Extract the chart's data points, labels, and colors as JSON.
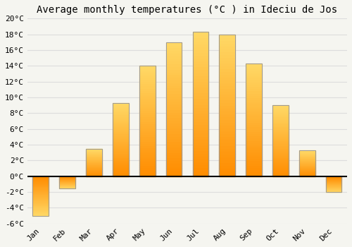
{
  "months": [
    "Jan",
    "Feb",
    "Mar",
    "Apr",
    "May",
    "Jun",
    "Jul",
    "Aug",
    "Sep",
    "Oct",
    "Nov",
    "Dec"
  ],
  "temperatures": [
    -5.0,
    -1.5,
    3.5,
    9.3,
    14.0,
    17.0,
    18.3,
    18.0,
    14.3,
    9.0,
    3.3,
    -2.0
  ],
  "bar_color": "#FFA500",
  "bar_color_grad_top": "#FFD966",
  "bar_color_grad_bottom": "#FF8C00",
  "bar_edge_color": "#999999",
  "title": "Average monthly temperatures (°C ) in Ideciu de Jos",
  "background_color": "#f5f5f0",
  "plot_bg_color": "#f5f5f0",
  "grid_color": "#dddddd",
  "ylim": [
    -6,
    20
  ],
  "yticks": [
    -6,
    -4,
    -2,
    0,
    2,
    4,
    6,
    8,
    10,
    12,
    14,
    16,
    18,
    20
  ],
  "zero_line_color": "#000000",
  "title_fontsize": 10,
  "tick_fontsize": 8,
  "font_family": "monospace"
}
